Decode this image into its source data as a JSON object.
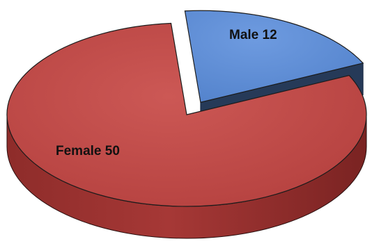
{
  "chart_data": {
    "type": "pie",
    "title": "",
    "style": "3d-exploded",
    "slices": [
      {
        "label": "Male",
        "value": 12,
        "display": "Male 12",
        "color": "#5a8ad2",
        "exploded": true
      },
      {
        "label": "Female",
        "value": 50,
        "display": "Female 50",
        "color": "#bf4b49",
        "exploded": false
      }
    ]
  }
}
